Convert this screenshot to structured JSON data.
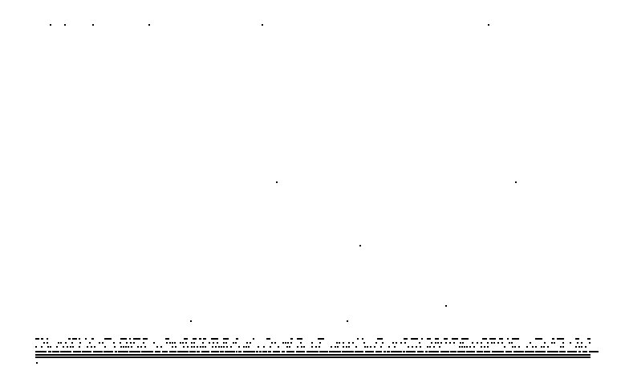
{
  "colors": {
    "background": "#ffffff",
    "ink": "#000000"
  },
  "description_free": true
}
